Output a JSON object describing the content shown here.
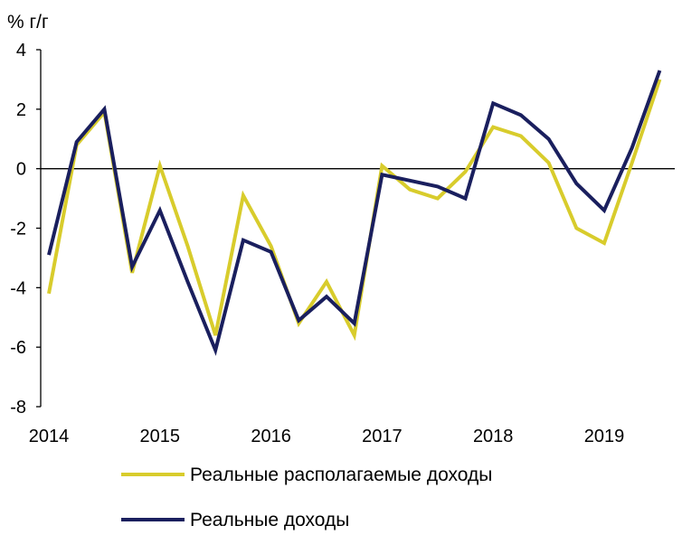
{
  "chart_data": {
    "type": "line",
    "unit_label": "% г/г",
    "xlabel": "",
    "ylabel": "",
    "ylim": [
      -8,
      4
    ],
    "y_ticks": [
      "4",
      "2",
      "0",
      "-2",
      "-4",
      "-6",
      "-8"
    ],
    "x_tick_labels": [
      "2014",
      "2015",
      "2016",
      "2017",
      "2018",
      "2019"
    ],
    "x": [
      "2014 Q1",
      "2014 Q2",
      "2014 Q3",
      "2014 Q4",
      "2015 Q1",
      "2015 Q2",
      "2015 Q3",
      "2015 Q4",
      "2016 Q1",
      "2016 Q2",
      "2016 Q3",
      "2016 Q4",
      "2017 Q1",
      "2017 Q2",
      "2017 Q3",
      "2017 Q4",
      "2018 Q1",
      "2018 Q2",
      "2018 Q3",
      "2018 Q4",
      "2019 Q1",
      "2019 Q2",
      "2019 Q3"
    ],
    "legend_position": "bottom",
    "grid": false,
    "series": [
      {
        "name": "Реальные располагаемые доходы",
        "color": "#d8cc2c",
        "values": [
          -4.2,
          0.8,
          1.9,
          -3.5,
          0.1,
          -2.6,
          -5.6,
          -0.9,
          -2.6,
          -5.2,
          -3.8,
          -5.6,
          0.1,
          -0.7,
          -1.0,
          -0.1,
          1.4,
          1.1,
          0.2,
          -2.0,
          -2.5,
          0.2,
          3.0
        ]
      },
      {
        "name": "Реальные доходы",
        "color": "#1a1f5e",
        "values": [
          -2.9,
          0.9,
          2.0,
          -3.3,
          -1.4,
          -3.8,
          -6.1,
          -2.4,
          -2.8,
          -5.1,
          -4.3,
          -5.2,
          -0.2,
          -0.4,
          -0.6,
          -1.0,
          2.2,
          1.8,
          1.0,
          -0.5,
          -1.4,
          0.7,
          3.3
        ]
      }
    ]
  }
}
